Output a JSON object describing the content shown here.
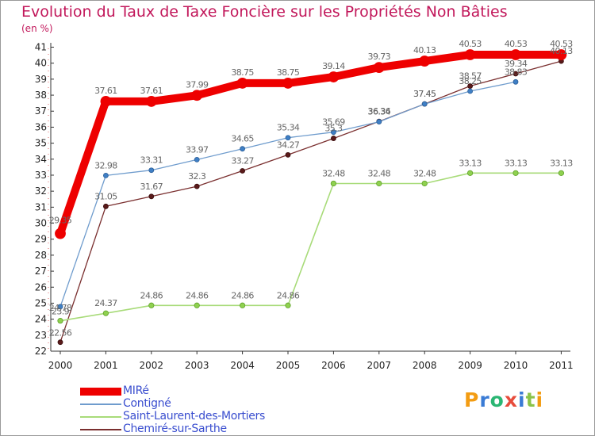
{
  "title": "Evolution du Taux de Taxe Foncière sur les Propriétés Non Bâties",
  "unit": "(en %)",
  "brand": {
    "text": "Proxiti",
    "colors": [
      "#f39c12",
      "#3a7bd5",
      "#2bb673",
      "#e74c3c",
      "#3a7bd5",
      "#8bc34a",
      "#f39c12"
    ]
  },
  "colors": {
    "MIRé": "#ee0000",
    "Contigné": "#6f9ccd",
    "Saint-Laurent-des-Mortiers": "#a8db79",
    "Chemiré-sur-Sarthe": "#7a2f2f"
  },
  "chart_data": {
    "type": "line",
    "title": "Evolution du Taux de Taxe Foncière sur les Propriétés Non Bâties",
    "ylabel": "(en %)",
    "xlabel": "",
    "x": [
      "2000",
      "2001",
      "2002",
      "2003",
      "2004",
      "2005",
      "2006",
      "2007",
      "2008",
      "2009",
      "2010",
      "2011"
    ],
    "ylim": [
      22,
      41
    ],
    "yticks": [
      "22",
      "23",
      "24",
      "25",
      "26",
      "27",
      "28",
      "29",
      "30",
      "31",
      "32",
      "33",
      "34",
      "35",
      "36",
      "37",
      "38",
      "39",
      "40",
      "41"
    ],
    "grid": false,
    "legend": "bottom-left",
    "series": [
      {
        "name": "MIRé",
        "color": "#ee0000",
        "values": [
          29.35,
          37.61,
          37.61,
          37.99,
          38.75,
          38.75,
          39.14,
          39.73,
          40.13,
          40.53,
          40.53,
          40.53
        ],
        "labels": [
          "29.35",
          "37.61",
          "37.61",
          "37.99",
          "38.75",
          "38.75",
          "39.14",
          "39.73",
          "40.13",
          "40.53",
          "40.53",
          "40.53"
        ]
      },
      {
        "name": "Contigné",
        "color": "#6f9ccd",
        "values": [
          24.78,
          32.98,
          33.31,
          33.97,
          34.65,
          35.34,
          35.69,
          36.34,
          37.45,
          38.25,
          38.83,
          null
        ],
        "labels": [
          "24.78",
          "32.98",
          "33.31",
          "33.97",
          "34.65",
          "35.34",
          "35.69",
          "36.34",
          "37.45",
          "38.25",
          "38.83",
          ""
        ]
      },
      {
        "name": "Saint-Laurent-des-Mortiers",
        "color": "#a8db79",
        "values": [
          23.9,
          24.37,
          24.86,
          24.86,
          24.86,
          24.86,
          32.48,
          32.48,
          32.48,
          33.13,
          33.13,
          33.13
        ],
        "labels": [
          "23.9",
          "24.37",
          "24.86",
          "24.86",
          "24.86",
          "24.86",
          "32.48",
          "32.48",
          "32.48",
          "33.13",
          "33.13",
          "33.13"
        ]
      },
      {
        "name": "Chemiré-sur-Sarthe",
        "color": "#7a2f2f",
        "values": [
          22.56,
          31.05,
          31.67,
          32.3,
          33.27,
          34.27,
          35.3,
          36.36,
          37.45,
          38.57,
          39.34,
          40.13
        ],
        "labels": [
          "22.56",
          "31.05",
          "31.67",
          "32.3",
          "33.27",
          "34.27",
          "35.3",
          "36.36",
          "37.45",
          "38.57",
          "39.34",
          "40.13"
        ]
      }
    ]
  }
}
